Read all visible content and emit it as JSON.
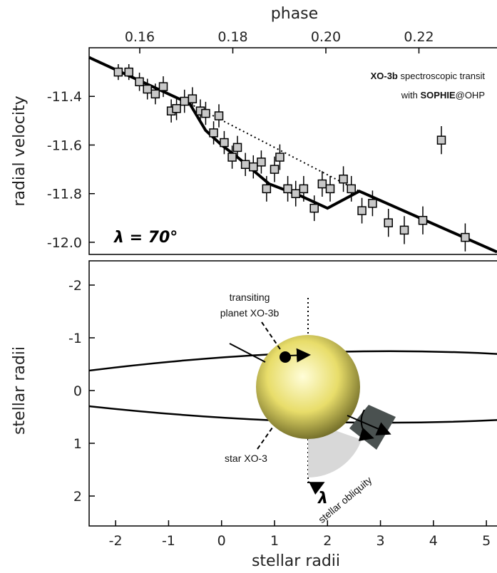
{
  "chart_data": [
    {
      "type": "line",
      "top_axis_title": "phase",
      "top_ticks": [
        "0.16",
        "0.18",
        "0.20",
        "0.22"
      ],
      "top_tick_values": [
        0.16,
        0.18,
        0.2,
        0.22
      ],
      "ylabel": "radial velocity",
      "yticks": [
        "-11.4",
        "-11.6",
        "-11.8",
        "-12.0"
      ],
      "ytick_values": [
        -11.4,
        -11.6,
        -11.8,
        -12.0
      ],
      "ylim": [
        -12.05,
        -11.2
      ],
      "xlim": [
        -2.5,
        5.2
      ],
      "annotation": {
        "line1_bold": "XO-3b",
        "line1_rest": " spectroscopic transit",
        "line2_pre": "with ",
        "line2_bold": "SOPHIE",
        "line2_post": "@OHP"
      },
      "lambda_label": "λ = 70°",
      "measurements": {
        "x": [
          -1.95,
          -1.75,
          -1.55,
          -1.4,
          -1.25,
          -1.1,
          -0.95,
          -0.85,
          -0.7,
          -0.55,
          -0.4,
          -0.3,
          -0.15,
          -0.05,
          0.05,
          0.2,
          0.3,
          0.45,
          0.6,
          0.75,
          0.85,
          1.0,
          1.1,
          1.25,
          1.4,
          1.55,
          1.75,
          1.9,
          2.05,
          2.3,
          2.45,
          2.65,
          2.85,
          3.15,
          3.45,
          3.8,
          4.15,
          4.6
        ],
        "y": [
          -11.3,
          -11.3,
          -11.34,
          -11.37,
          -11.39,
          -11.36,
          -11.46,
          -11.45,
          -11.42,
          -11.41,
          -11.46,
          -11.47,
          -11.55,
          -11.48,
          -11.59,
          -11.65,
          -11.61,
          -11.68,
          -11.69,
          -11.67,
          -11.78,
          -11.7,
          -11.65,
          -11.78,
          -11.8,
          -11.78,
          -11.86,
          -11.76,
          -11.78,
          -11.74,
          -11.78,
          -11.87,
          -11.84,
          -11.92,
          -11.95,
          -11.91,
          -11.58,
          -11.98
        ],
        "yerr": [
          0.015,
          0.015,
          0.02,
          0.025,
          0.025,
          0.025,
          0.03,
          0.03,
          0.03,
          0.03,
          0.03,
          0.03,
          0.03,
          0.03,
          0.03,
          0.03,
          0.03,
          0.03,
          0.03,
          0.03,
          0.035,
          0.035,
          0.035,
          0.035,
          0.035,
          0.035,
          0.035,
          0.035,
          0.035,
          0.035,
          0.035,
          0.035,
          0.035,
          0.04,
          0.04,
          0.04,
          0.04,
          0.04
        ]
      },
      "model_fit": {
        "x": [
          -2.5,
          -0.6,
          -0.3,
          0.0,
          0.3,
          0.9,
          1.5,
          2.0,
          2.6,
          5.2
        ],
        "y": [
          -11.24,
          -11.43,
          -11.54,
          -11.6,
          -11.65,
          -11.76,
          -11.81,
          -11.86,
          -11.79,
          -12.04
        ]
      },
      "keplerian_no_transit": {
        "x": [
          -0.6,
          2.6
        ],
        "y": [
          -11.43,
          -11.79
        ]
      }
    },
    {
      "type": "diagram",
      "xlabel": "stellar radii",
      "ylabel": "stellar radii",
      "xticks": [
        "-2",
        "-1",
        "0",
        "1",
        "2",
        "3",
        "4",
        "5"
      ],
      "xtick_values": [
        -2,
        -1,
        0,
        1,
        2,
        3,
        4,
        5
      ],
      "yticks": [
        "-2",
        "-1",
        "0",
        "1",
        "2"
      ],
      "ytick_values": [
        -2,
        -1,
        0,
        1,
        2
      ],
      "ylim": [
        2.6,
        -2.6
      ],
      "labels": {
        "planet_line1": "transiting",
        "planet_line2": "planet XO-3b",
        "star": "star XO-3",
        "obliquity": "stellar obliquity",
        "lambda_symbol": "λ"
      },
      "colors": {
        "star_center": "#fffdd8",
        "star_mid": "#e8dd6a",
        "star_edge": "#6f6a27",
        "obliquity_wedge": "#d8d8d8",
        "rotation_wedge": "#4a5150"
      }
    }
  ]
}
